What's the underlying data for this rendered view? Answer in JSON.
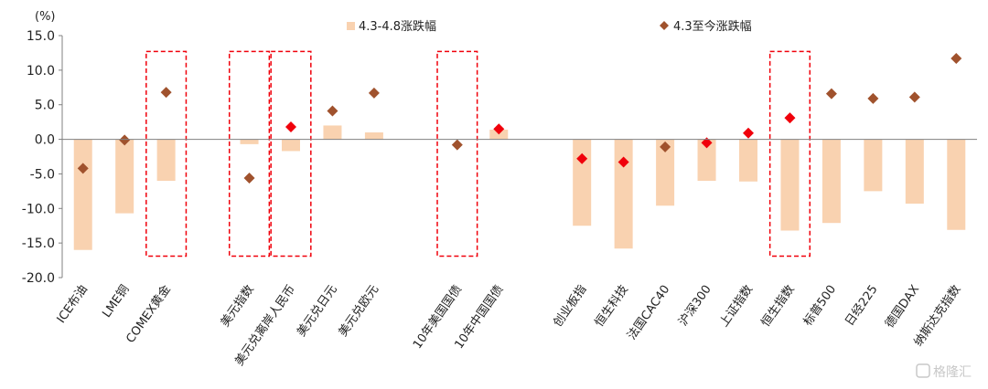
{
  "chart_data": {
    "type": "bar",
    "unit_label": "(%)",
    "categories": [
      "ICE布油",
      "LME铜",
      "COMEX黄金",
      "美元指数",
      "美元兑离岸人民币",
      "美元兑日元",
      "美元兑欧元",
      "10年美国国债",
      "10年中国国债",
      "创业板指",
      "恒生科技",
      "法国CAC40",
      "沪深300",
      "上证指数",
      "恒生指数",
      "标普500",
      "日经225",
      "德国DAX",
      "纳斯达克指数"
    ],
    "x_slots": [
      0,
      1,
      2,
      4,
      5,
      6,
      7,
      9,
      10,
      12,
      13,
      14,
      15,
      16,
      17,
      18,
      19,
      20,
      21
    ],
    "ylim": [
      -20,
      15
    ],
    "yticks": [
      "15.0",
      "10.0",
      "5.0",
      "0.0",
      "-5.0",
      "-10.0",
      "-15.0",
      "-20.0"
    ],
    "ytick_values": [
      15,
      10,
      5,
      0,
      -5,
      -10,
      -15,
      -20
    ],
    "series": [
      {
        "name": "4.3-4.8涨跌幅",
        "mark": "bar",
        "color": "#f9d2b0",
        "values": [
          -16.0,
          -10.7,
          -6.0,
          -0.7,
          -1.7,
          2.0,
          1.0,
          0,
          1.4,
          -12.5,
          -15.8,
          -9.6,
          -6.0,
          -6.1,
          -13.2,
          -12.1,
          -7.5,
          -9.3,
          -13.1
        ]
      },
      {
        "name": "4.3至今涨跌幅",
        "mark": "diamond",
        "color": "#a0522d",
        "values": [
          -4.2,
          -0.1,
          6.8,
          -5.6,
          1.8,
          4.1,
          6.7,
          -0.8,
          1.5,
          -2.8,
          -3.3,
          -1.1,
          -0.5,
          0.9,
          3.1,
          6.6,
          5.9,
          6.1,
          11.7
        ]
      }
    ],
    "highlight_color": "#f0000b",
    "highlighted_points": [
      "美元兑离岸人民币",
      "10年中国国债",
      "创业板指",
      "恒生科技",
      "沪深300",
      "上证指数",
      "恒生指数"
    ],
    "dashed_boxes": [
      [
        "COMEX黄金"
      ],
      [
        "美元指数"
      ],
      [
        "美元兑离岸人民币"
      ],
      [
        "10年美国国债"
      ],
      [
        "恒生指数"
      ]
    ],
    "legend_placement": "top",
    "grid": false
  },
  "watermark": "格隆汇"
}
